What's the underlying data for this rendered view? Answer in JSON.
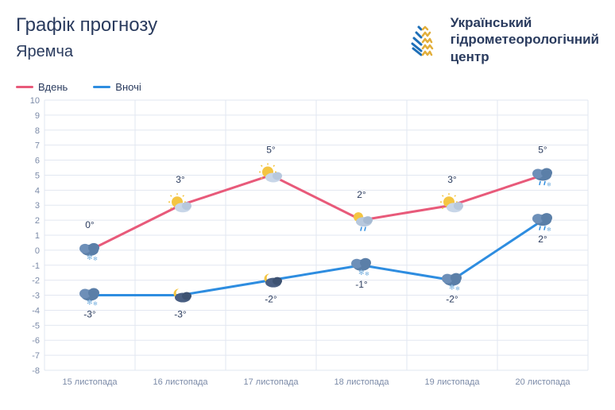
{
  "title": "Графік прогнозу",
  "subtitle": "Яремча",
  "org": {
    "line1": "Український",
    "line2": "гідрометеорологічний",
    "line3": "центр",
    "text_color": "#2a3b5e",
    "logo_colors": {
      "blue": "#1e6fb8",
      "gold": "#e2ae3a"
    }
  },
  "legend": [
    {
      "label": "Вдень",
      "color": "#e85a7a"
    },
    {
      "label": "Вночі",
      "color": "#2e8de0"
    }
  ],
  "chart": {
    "type": "line",
    "background_color": "#ffffff",
    "grid_color": "#e2e7f1",
    "axis_label_color": "#7c8ba8",
    "temp_label_fontsize": 12,
    "axis_label_fontsize": 11,
    "line_width": 3,
    "ylim": [
      -8,
      10
    ],
    "ytick_step": 1,
    "x_categories": [
      "15 листопада",
      "16 листопада",
      "17 листопада",
      "18 листопада",
      "19 листопада",
      "20 листопада"
    ],
    "series": [
      {
        "name": "Вдень",
        "color": "#e85a7a",
        "values": [
          0,
          3,
          5,
          2,
          3,
          5
        ],
        "icons": [
          "cloud-snow",
          "sun-cloud",
          "sun-cloud",
          "sun-cloud-rain",
          "sun-cloud",
          "cloud-rain-snow"
        ],
        "label_offset_y": -28
      },
      {
        "name": "Вночі",
        "color": "#2e8de0",
        "values": [
          -3,
          -3,
          -2,
          -1,
          -2,
          2
        ],
        "icons": [
          "cloud-snow",
          "moon-cloud",
          "moon-cloud",
          "cloud-snow",
          "cloud-snow",
          "cloud-rain-snow"
        ],
        "label_offset_y": 28
      }
    ]
  }
}
